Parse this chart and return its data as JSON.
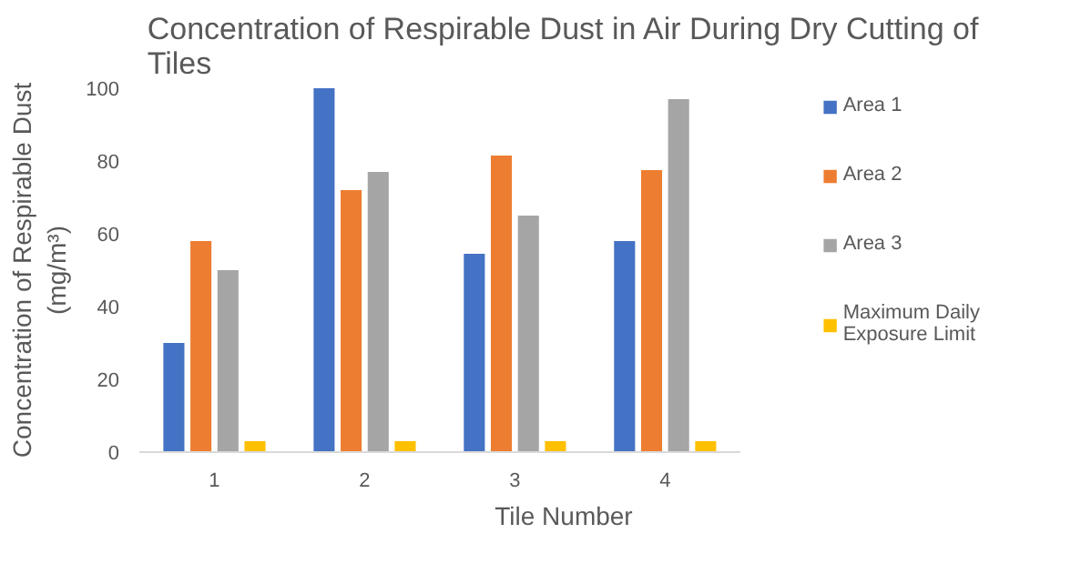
{
  "chart_data": {
    "type": "bar",
    "title": "Concentration of Respirable Dust in Air During Dry Cutting of Tiles",
    "xlabel": "Tile Number",
    "ylabel": "Concentration of Respirable Dust (mg/m³)",
    "categories": [
      "1",
      "2",
      "3",
      "4"
    ],
    "series": [
      {
        "name": "Area 1",
        "color": "#4472c4",
        "values": [
          30,
          100,
          54.5,
          58
        ]
      },
      {
        "name": "Area 2",
        "color": "#ed7d31",
        "values": [
          58,
          72,
          81.5,
          77.5
        ]
      },
      {
        "name": "Area 3",
        "color": "#a5a5a5",
        "values": [
          50,
          77,
          65,
          97
        ]
      },
      {
        "name": "Maximum Daily Exposure Limit",
        "color": "#ffc000",
        "values": [
          3,
          3,
          3,
          3
        ]
      }
    ],
    "ylim": [
      0,
      100
    ],
    "yticks": [
      0,
      20,
      40,
      60,
      80,
      100
    ],
    "grid": false,
    "legend": "right"
  }
}
